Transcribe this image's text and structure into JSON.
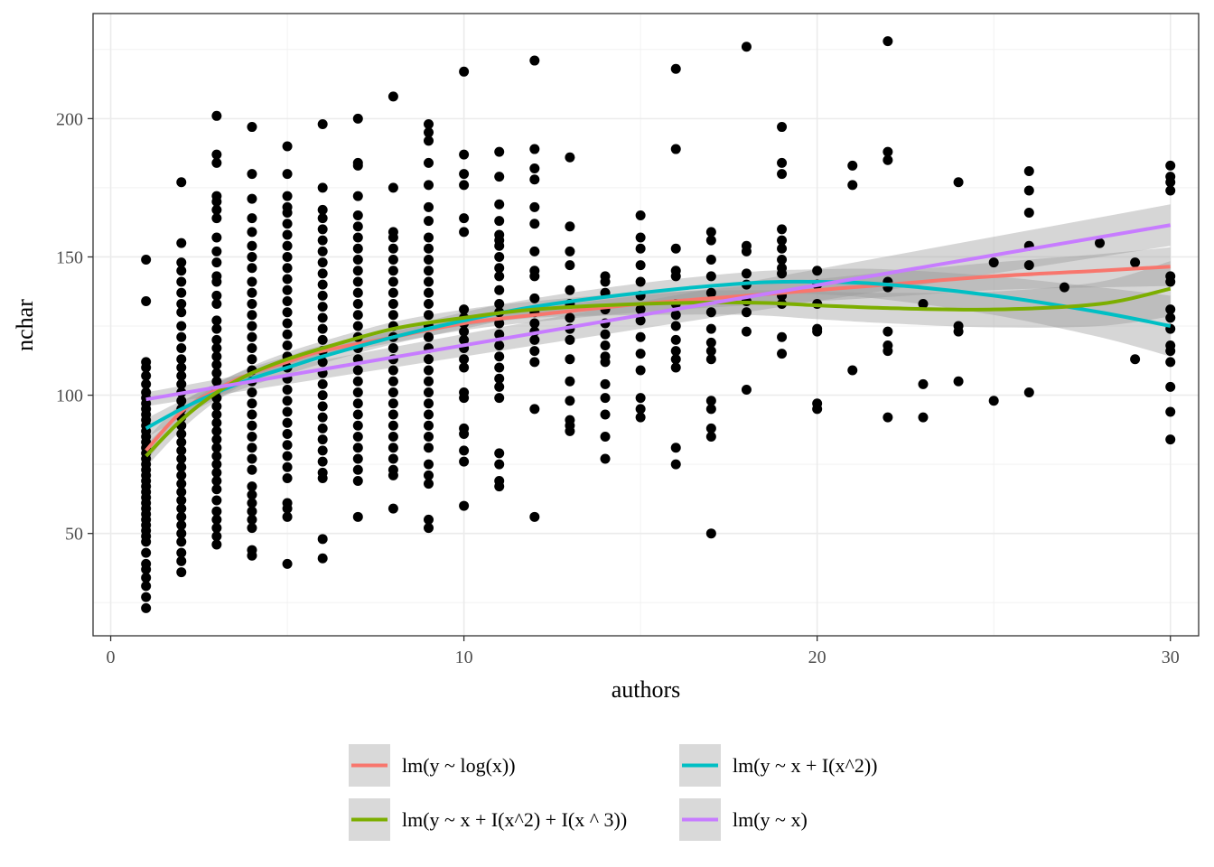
{
  "chart_data": {
    "type": "scatter",
    "title": "",
    "xlabel": "authors",
    "ylabel": "nchar",
    "xlim": [
      -0.5,
      30.8
    ],
    "ylim": [
      13,
      238
    ],
    "x_ticks": [
      0,
      10,
      20,
      30
    ],
    "y_ticks": [
      50,
      100,
      150,
      200
    ],
    "x_tick_labels": [
      "0",
      "10",
      "20",
      "30"
    ],
    "y_tick_labels": [
      "50",
      "100",
      "150",
      "200"
    ],
    "grid": true,
    "legend_position": "bottom",
    "point_color": "#000000",
    "points": [
      {
        "x": 1,
        "ys": [
          149,
          134,
          112,
          110,
          107,
          104,
          101,
          99,
          97,
          95,
          93,
          91,
          89,
          87,
          85,
          83,
          81,
          79,
          77,
          75,
          73,
          71,
          69,
          67,
          65,
          63,
          61,
          59,
          57,
          55,
          53,
          51,
          49,
          47,
          43,
          39,
          37,
          34,
          31,
          27,
          23
        ]
      },
      {
        "x": 2,
        "ys": [
          177,
          155,
          148,
          145,
          141,
          137,
          133,
          130,
          125,
          121,
          117,
          113,
          110,
          107,
          104,
          101,
          98,
          95,
          92,
          89,
          86,
          83,
          80,
          77,
          74,
          71,
          68,
          65,
          62,
          59,
          56,
          53,
          50,
          47,
          43,
          40,
          36
        ]
      },
      {
        "x": 3,
        "ys": [
          201,
          187,
          184,
          172,
          170,
          167,
          164,
          157,
          152,
          148,
          143,
          141,
          136,
          133,
          127,
          124,
          120,
          117,
          114,
          111,
          108,
          105,
          102,
          99,
          96,
          93,
          90,
          87,
          84,
          81,
          78,
          75,
          72,
          69,
          66,
          62,
          58,
          55,
          52,
          49,
          46
        ]
      },
      {
        "x": 4,
        "ys": [
          197,
          180,
          171,
          164,
          159,
          154,
          150,
          146,
          141,
          137,
          133,
          129,
          125,
          121,
          117,
          113,
          109,
          105,
          101,
          97,
          93,
          89,
          85,
          81,
          77,
          73,
          67,
          64,
          61,
          58,
          55,
          52,
          44,
          42
        ]
      },
      {
        "x": 5,
        "ys": [
          190,
          180,
          172,
          168,
          166,
          162,
          158,
          154,
          150,
          146,
          142,
          138,
          134,
          130,
          126,
          122,
          118,
          114,
          110,
          106,
          102,
          98,
          94,
          90,
          86,
          82,
          78,
          74,
          70,
          61,
          59,
          56,
          39
        ]
      },
      {
        "x": 6,
        "ys": [
          198,
          175,
          167,
          164,
          160,
          156,
          152,
          148,
          144,
          140,
          136,
          132,
          128,
          124,
          120,
          116,
          112,
          108,
          104,
          100,
          96,
          92,
          88,
          84,
          80,
          76,
          72,
          70,
          48,
          41
        ]
      },
      {
        "x": 7,
        "ys": [
          200,
          184,
          183,
          172,
          165,
          161,
          157,
          153,
          149,
          145,
          141,
          137,
          133,
          129,
          125,
          121,
          117,
          113,
          109,
          105,
          101,
          97,
          93,
          89,
          85,
          81,
          77,
          73,
          69,
          56
        ]
      },
      {
        "x": 8,
        "ys": [
          208,
          175,
          159,
          157,
          153,
          149,
          145,
          141,
          137,
          133,
          129,
          125,
          121,
          117,
          113,
          109,
          105,
          101,
          97,
          93,
          89,
          85,
          81,
          77,
          73,
          71,
          59
        ]
      },
      {
        "x": 9,
        "ys": [
          198,
          195,
          192,
          184,
          176,
          168,
          163,
          157,
          153,
          149,
          145,
          141,
          137,
          133,
          129,
          125,
          121,
          117,
          113,
          109,
          105,
          101,
          97,
          93,
          89,
          85,
          81,
          75,
          71,
          68,
          55,
          52
        ]
      },
      {
        "x": 10,
        "ys": [
          217,
          187,
          180,
          176,
          164,
          159,
          131,
          128,
          126,
          123,
          120,
          117,
          113,
          110,
          101,
          99,
          88,
          86,
          80,
          76,
          60
        ]
      },
      {
        "x": 11,
        "ys": [
          188,
          179,
          169,
          163,
          158,
          156,
          154,
          150,
          146,
          143,
          138,
          133,
          130,
          126,
          122,
          118,
          114,
          110,
          106,
          103,
          99,
          79,
          75,
          69,
          67
        ]
      },
      {
        "x": 12,
        "ys": [
          221,
          189,
          182,
          178,
          168,
          162,
          152,
          145,
          143,
          135,
          130,
          126,
          123,
          120,
          116,
          112,
          95,
          56
        ]
      },
      {
        "x": 13,
        "ys": [
          186,
          161,
          152,
          147,
          138,
          133,
          128,
          124,
          120,
          113,
          105,
          98,
          91,
          89,
          87
        ]
      },
      {
        "x": 14,
        "ys": [
          143,
          141,
          137,
          131,
          126,
          122,
          118,
          114,
          112,
          104,
          99,
          93,
          85,
          77
        ]
      },
      {
        "x": 15,
        "ys": [
          165,
          157,
          153,
          147,
          141,
          136,
          131,
          127,
          121,
          115,
          109,
          99,
          95,
          92
        ]
      },
      {
        "x": 16,
        "ys": [
          218,
          189,
          153,
          145,
          143,
          133,
          129,
          125,
          120,
          116,
          113,
          110,
          81,
          75
        ]
      },
      {
        "x": 17,
        "ys": [
          159,
          156,
          149,
          143,
          137,
          130,
          124,
          119,
          116,
          113,
          98,
          95,
          88,
          85,
          50
        ]
      },
      {
        "x": 18,
        "ys": [
          226,
          154,
          152,
          144,
          140,
          134,
          130,
          123,
          102
        ]
      },
      {
        "x": 19,
        "ys": [
          197,
          184,
          180,
          160,
          156,
          153,
          149,
          146,
          144,
          136,
          133,
          121,
          115
        ]
      },
      {
        "x": 20,
        "ys": [
          145,
          140,
          133,
          124,
          123,
          97,
          95
        ]
      },
      {
        "x": 21,
        "ys": [
          183,
          176,
          109
        ]
      },
      {
        "x": 22,
        "ys": [
          228,
          188,
          185,
          141,
          139,
          123,
          118,
          116,
          92
        ]
      },
      {
        "x": 23,
        "ys": [
          133,
          104,
          92
        ]
      },
      {
        "x": 24,
        "ys": [
          177,
          125,
          123,
          105
        ]
      },
      {
        "x": 25,
        "ys": [
          148,
          98
        ]
      },
      {
        "x": 26,
        "ys": [
          181,
          174,
          166,
          154,
          147,
          101
        ]
      },
      {
        "x": 27,
        "ys": [
          139
        ]
      },
      {
        "x": 28,
        "ys": [
          155
        ]
      },
      {
        "x": 29,
        "ys": [
          148,
          113
        ]
      },
      {
        "x": 30,
        "ys": [
          183,
          179,
          177,
          174,
          143,
          141,
          131,
          128,
          124,
          118,
          116,
          112,
          103,
          94,
          84
        ]
      }
    ],
    "series": [
      {
        "name": "lm(y ~ log(x))",
        "color": "#F8766D",
        "x": [
          1,
          2,
          3,
          4,
          5,
          6,
          8,
          10,
          12,
          15,
          18,
          20,
          22,
          25,
          28,
          30
        ],
        "y": [
          80,
          94,
          102,
          108,
          112,
          116,
          121,
          126,
          129,
          133,
          136,
          138,
          140,
          143,
          145,
          146.5
        ],
        "se": [
          4,
          3,
          2.5,
          2,
          2,
          2,
          2,
          2.5,
          2.5,
          3,
          3.5,
          4,
          4.5,
          5,
          6,
          7
        ]
      },
      {
        "name": "lm(y ~ x + I(x^2))",
        "color": "#00BFC4",
        "x": [
          1,
          2,
          3,
          4,
          5,
          6,
          8,
          10,
          12,
          15,
          18,
          20,
          22,
          25,
          28,
          30
        ],
        "y": [
          88,
          95,
          101,
          106,
          110,
          114,
          121,
          127,
          132,
          137,
          140.5,
          141,
          140,
          136,
          130,
          125
        ],
        "se": [
          3.5,
          3,
          2.5,
          2.5,
          2.5,
          2.5,
          2.5,
          3,
          3,
          3.5,
          4,
          4.5,
          5.5,
          7,
          9,
          11
        ]
      },
      {
        "name": "lm(y ~ x + I(x^2) + I(x ^ 3))",
        "color": "#7CAE00",
        "x": [
          1,
          2,
          3,
          4,
          5,
          6,
          8,
          10,
          12,
          15,
          18,
          20,
          22,
          25,
          28,
          30
        ],
        "y": [
          78,
          91,
          101,
          108,
          113,
          117,
          124,
          128,
          131,
          133,
          133.5,
          132.5,
          131.5,
          131,
          133,
          138.5
        ],
        "se": [
          4,
          3.5,
          3,
          2.5,
          2.5,
          2.5,
          2.5,
          3,
          3,
          4,
          4.5,
          5,
          5.5,
          6.5,
          8,
          10
        ]
      },
      {
        "name": "lm(y ~ x)",
        "color": "#C77CFF",
        "x": [
          1,
          30
        ],
        "y": [
          98.5,
          161.5
        ],
        "se": [
          2.5,
          7.5
        ]
      }
    ],
    "legend": [
      {
        "label": "lm(y ~ log(x))",
        "color": "#F8766D"
      },
      {
        "label": "lm(y ~ x + I(x^2))",
        "color": "#00BFC4"
      },
      {
        "label": "lm(y ~ x + I(x^2) + I(x ^ 3))",
        "color": "#7CAE00"
      },
      {
        "label": "lm(y ~ x)",
        "color": "#C77CFF"
      }
    ]
  }
}
